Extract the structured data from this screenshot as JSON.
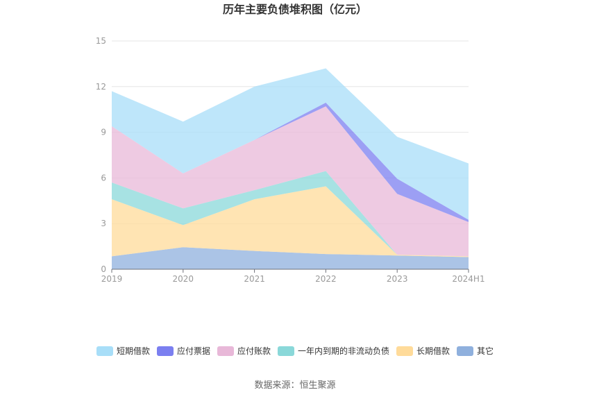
{
  "chart_data": {
    "type": "area",
    "stacked": true,
    "title": "历年主要负债堆积图（亿元）",
    "x": [
      "2019",
      "2020",
      "2021",
      "2022",
      "2023",
      "2024H1"
    ],
    "ylim": [
      0,
      15
    ],
    "yticks": [
      0,
      3,
      6,
      9,
      12,
      15
    ],
    "grid": true,
    "legend_position": "bottom",
    "series": [
      {
        "name": "其它",
        "color": "#8fb0dd",
        "values": [
          0.85,
          1.45,
          1.2,
          1.0,
          0.9,
          0.8
        ]
      },
      {
        "name": "长期借款",
        "color": "#ffdb9a",
        "values": [
          3.75,
          1.45,
          3.4,
          4.45,
          0.05,
          0.05
        ]
      },
      {
        "name": "一年内到期的非流动负债",
        "color": "#8ad8d9",
        "values": [
          1.1,
          1.1,
          0.6,
          1.0,
          0.0,
          0.0
        ]
      },
      {
        "name": "应付账款",
        "color": "#e8b8d8",
        "values": [
          3.7,
          2.3,
          3.3,
          4.25,
          4.0,
          2.25
        ]
      },
      {
        "name": "应付票据",
        "color": "#7b7ff0",
        "values": [
          0.0,
          0.0,
          0.0,
          0.25,
          1.0,
          0.15
        ]
      },
      {
        "name": "短期借款",
        "color": "#a8def8",
        "values": [
          2.3,
          3.4,
          3.5,
          2.25,
          2.75,
          3.7
        ]
      }
    ],
    "legend_order": [
      "短期借款",
      "应付票据",
      "应付账款",
      "一年内到期的非流动负债",
      "长期借款",
      "其它"
    ],
    "source": "数据来源：恒生聚源"
  }
}
